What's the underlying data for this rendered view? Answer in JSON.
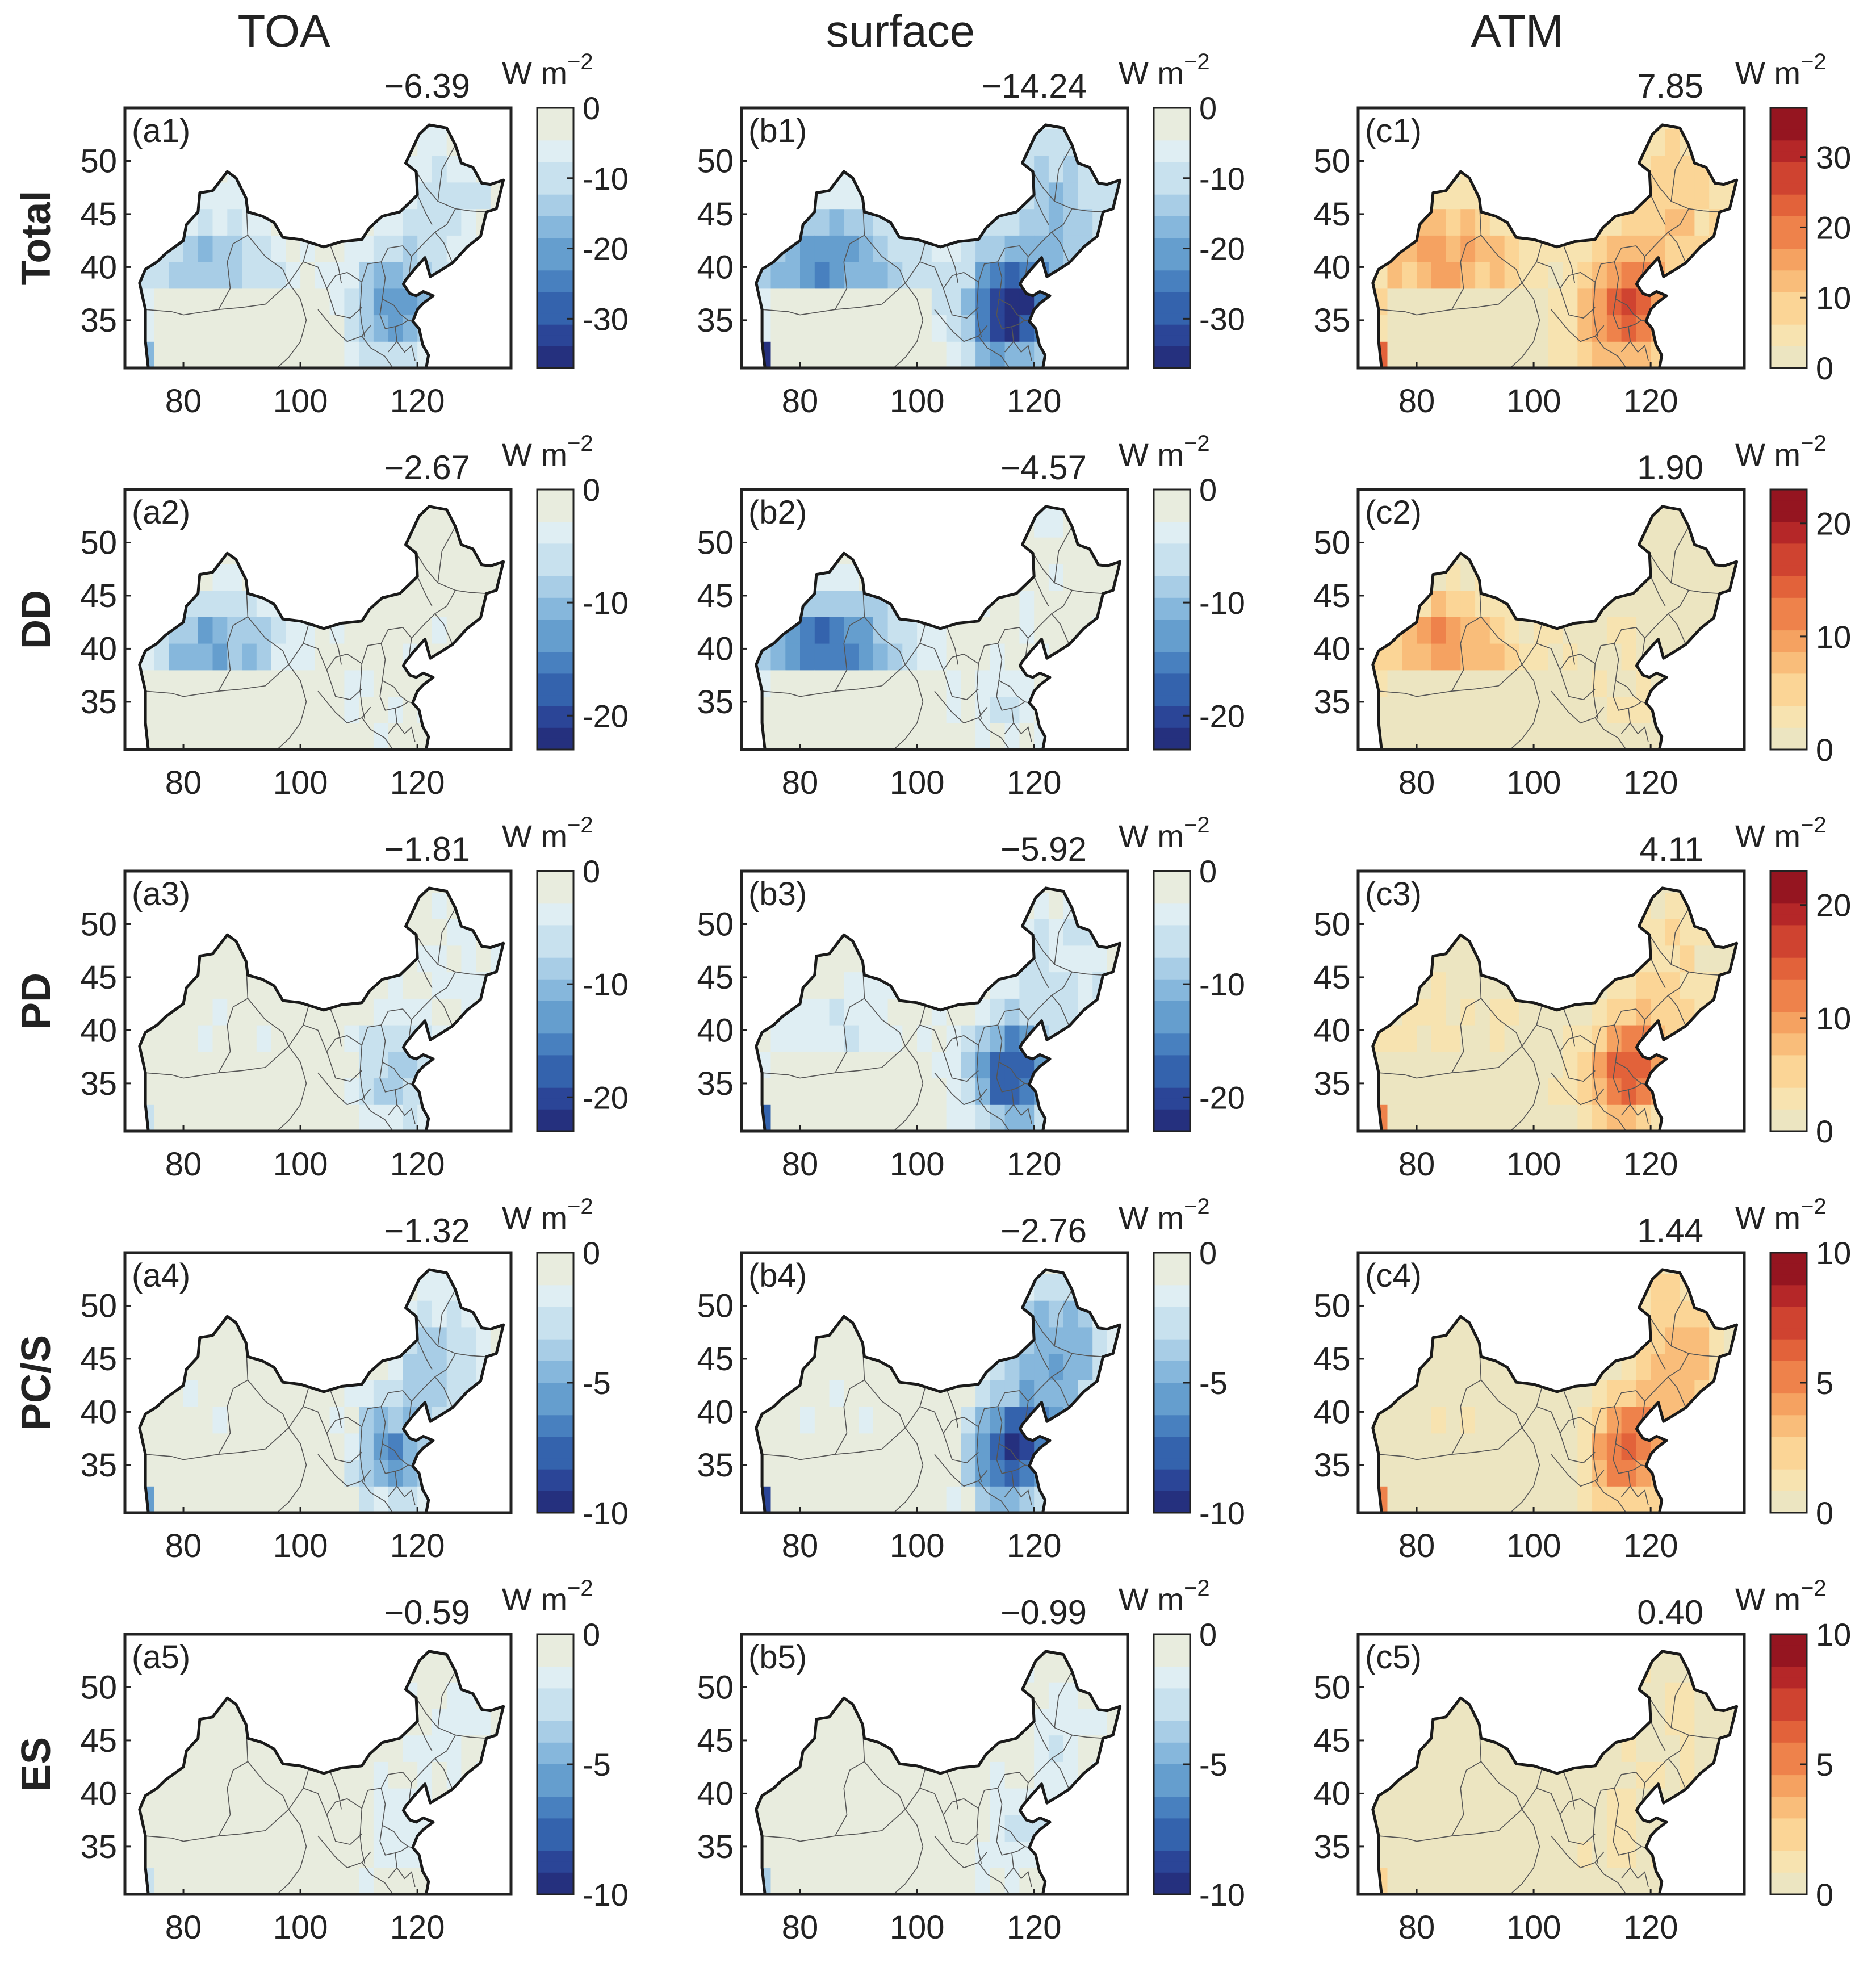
{
  "columns": [
    "TOA",
    "surface",
    "ATM"
  ],
  "rows": [
    "Total",
    "DD",
    "PD",
    "PC/S",
    "ES"
  ],
  "unit": "W m",
  "unit_exp": "−2",
  "x_ticks": [
    "80",
    "100",
    "120"
  ],
  "y_ticks": [
    "50",
    "45",
    "40",
    "35"
  ],
  "panels": [
    {
      "id": "(a1)",
      "value": "−6.39",
      "colorbar": [
        "0",
        "-10",
        "-20",
        "-30"
      ],
      "scheme": "blue",
      "vmax": 37,
      "intensity": 0.55
    },
    {
      "id": "(b1)",
      "value": "−14.24",
      "colorbar": [
        "0",
        "-10",
        "-20",
        "-30"
      ],
      "scheme": "blue",
      "vmax": 37,
      "intensity": 0.95
    },
    {
      "id": "(c1)",
      "value": "7.85",
      "colorbar": [
        "30",
        "20",
        "10",
        "0"
      ],
      "scheme": "red",
      "vmax": 37,
      "intensity": 0.7
    },
    {
      "id": "(a2)",
      "value": "−2.67",
      "colorbar": [
        "0",
        "-10",
        "-20"
      ],
      "scheme": "blue",
      "vmax": 23,
      "intensity": 0.45
    },
    {
      "id": "(b2)",
      "value": "−4.57",
      "colorbar": [
        "0",
        "-10",
        "-20"
      ],
      "scheme": "blue",
      "vmax": 23,
      "intensity": 0.7
    },
    {
      "id": "(c2)",
      "value": "1.90",
      "colorbar": [
        "20",
        "10",
        "0"
      ],
      "scheme": "red",
      "vmax": 23,
      "intensity": 0.45
    },
    {
      "id": "(a3)",
      "value": "−1.81",
      "colorbar": [
        "0",
        "-10",
        "-20"
      ],
      "scheme": "blue",
      "vmax": 23,
      "intensity": 0.35
    },
    {
      "id": "(b3)",
      "value": "−5.92",
      "colorbar": [
        "0",
        "-10",
        "-20"
      ],
      "scheme": "blue",
      "vmax": 23,
      "intensity": 0.8
    },
    {
      "id": "(c3)",
      "value": "4.11",
      "colorbar": [
        "20",
        "10",
        "0"
      ],
      "scheme": "red",
      "vmax": 23,
      "intensity": 0.65
    },
    {
      "id": "(a4)",
      "value": "−1.32",
      "colorbar": [
        "0",
        "-5",
        "-10"
      ],
      "scheme": "blue",
      "vmax": 10,
      "intensity": 0.6
    },
    {
      "id": "(b4)",
      "value": "−2.76",
      "colorbar": [
        "0",
        "-5",
        "-10"
      ],
      "scheme": "blue",
      "vmax": 10,
      "intensity": 0.95
    },
    {
      "id": "(c4)",
      "value": "1.44",
      "colorbar": [
        "10",
        "5",
        "0"
      ],
      "scheme": "red",
      "vmax": 10,
      "intensity": 0.65
    },
    {
      "id": "(a5)",
      "value": "−0.59",
      "colorbar": [
        "0",
        "-5",
        "-10"
      ],
      "scheme": "blue",
      "vmax": 10,
      "intensity": 0.3
    },
    {
      "id": "(b5)",
      "value": "−0.99",
      "colorbar": [
        "0",
        "-5",
        "-10"
      ],
      "scheme": "blue",
      "vmax": 10,
      "intensity": 0.35
    },
    {
      "id": "(c5)",
      "value": "0.40",
      "colorbar": [
        "10",
        "5",
        "0"
      ],
      "scheme": "red",
      "vmax": 10,
      "intensity": 0.25
    }
  ],
  "colors": {
    "blue_ramp": [
      "#e8ecde",
      "#dfeef3",
      "#c8e1ee",
      "#a8cde6",
      "#86b7dc",
      "#659ece",
      "#4880bf",
      "#3463ad",
      "#2b4597",
      "#25307e"
    ],
    "red_ramp": [
      "#ece5c1",
      "#f7e3b0",
      "#fbd596",
      "#f9bd7a",
      "#f5a261",
      "#ee824b",
      "#e2623a",
      "#cf4330",
      "#b52728",
      "#951520"
    ],
    "outline": "#1a1a1a",
    "province": "#555555"
  }
}
